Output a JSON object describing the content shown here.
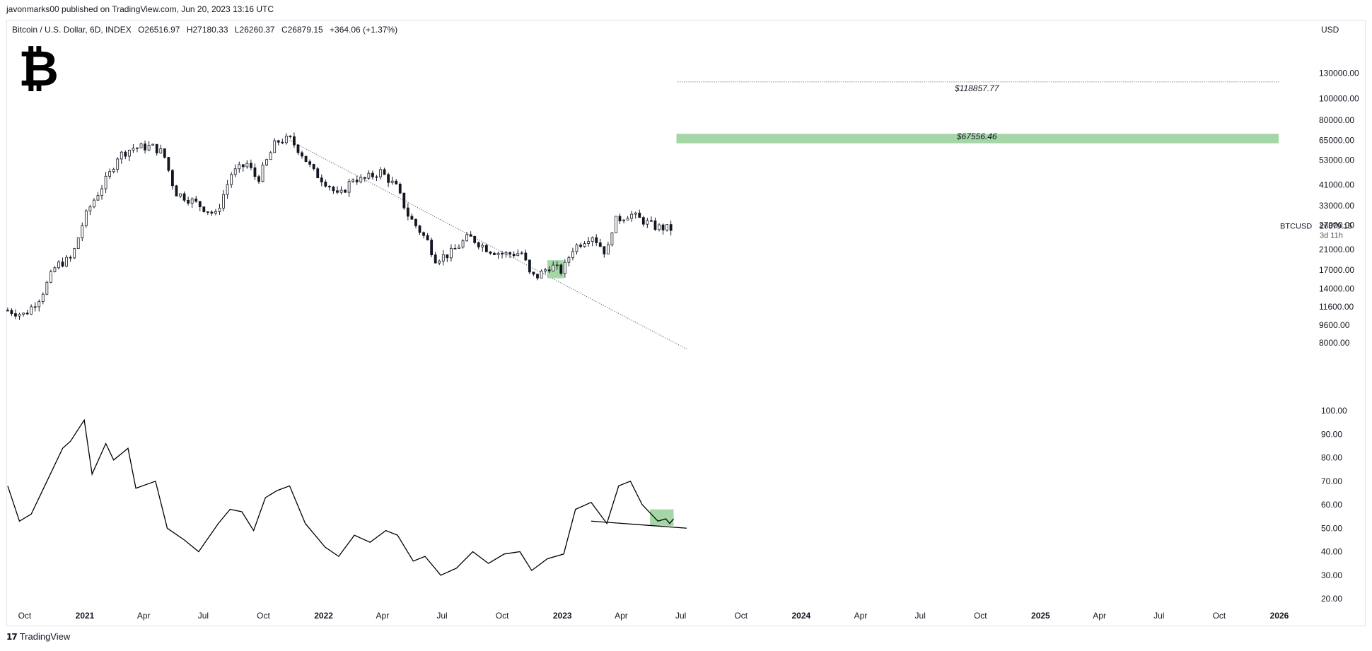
{
  "header": {
    "publisher_line": "javonmarks00 published on TradingView.com, Jun 20, 2023 13:16 UTC"
  },
  "legend": {
    "instrument": "Bitcoin / U.S. Dollar, 6D, INDEX",
    "open": "O26516.97",
    "high": "H27180.33",
    "low": "L26260.37",
    "close": "C26879.15",
    "change": "+364.06 (+1.37%)"
  },
  "logo": {
    "symbol": "₿",
    "icon": "bitcoin-logo-icon"
  },
  "axis": {
    "currency": "USD"
  },
  "price_tag": {
    "symbol": "BTCUSD",
    "price": "26879.15",
    "countdown": "3d 11h"
  },
  "footer": {
    "brand_mark": "17",
    "brand": "TradingView"
  },
  "colors": {
    "candle_up": "#ffffff",
    "candle_down": "#131722",
    "target_band": "#a5d6a7",
    "highlight": "#a5d6a7",
    "line": "#000000",
    "axis_text": "#131722"
  },
  "chart_data": {
    "type": "candlestick",
    "timeframe": "6D",
    "price_scale": "log",
    "price_ticks": [
      "130000.00",
      "100000.00",
      "80000.00",
      "65000.00",
      "53000.00",
      "41000.00",
      "33000.00",
      "27000.00",
      "21000.00",
      "17000.00",
      "14000.00",
      "11600.00",
      "9600.00",
      "8000.00"
    ],
    "indicator_ticks": [
      "100.00",
      "90.00",
      "80.00",
      "70.00",
      "60.00",
      "50.00",
      "40.00",
      "30.00",
      "20.00"
    ],
    "time_ticks": [
      "Oct",
      "2021",
      "Apr",
      "Jul",
      "Oct",
      "2022",
      "Apr",
      "Jul",
      "Oct",
      "2023",
      "Apr",
      "Jul",
      "Oct",
      "2024",
      "Apr",
      "Jul",
      "Oct",
      "2025",
      "Apr",
      "Jul",
      "Oct",
      "2026"
    ],
    "price_series": [
      [
        "2020-09-05",
        11200
      ],
      [
        "2020-10-01",
        10700
      ],
      [
        "2020-10-25",
        12900
      ],
      [
        "2020-11-18",
        17800
      ],
      [
        "2020-12-12",
        19200
      ],
      [
        "2020-12-31",
        28900
      ],
      [
        "2021-01-12",
        34000
      ],
      [
        "2021-02-08",
        46000
      ],
      [
        "2021-02-20",
        55000
      ],
      [
        "2021-03-14",
        60000
      ],
      [
        "2021-04-13",
        61000
      ],
      [
        "2021-05-01",
        57000
      ],
      [
        "2021-05-19",
        38000
      ],
      [
        "2021-06-12",
        35000
      ],
      [
        "2021-07-20",
        30000
      ],
      [
        "2021-08-13",
        46000
      ],
      [
        "2021-09-06",
        51000
      ],
      [
        "2021-09-22",
        43000
      ],
      [
        "2021-10-20",
        64000
      ],
      [
        "2021-11-10",
        66000
      ],
      [
        "2021-11-28",
        57000
      ],
      [
        "2021-12-16",
        47000
      ],
      [
        "2022-01-09",
        41000
      ],
      [
        "2022-01-24",
        36000
      ],
      [
        "2022-02-15",
        44000
      ],
      [
        "2022-03-01",
        43000
      ],
      [
        "2022-03-29",
        47000
      ],
      [
        "2022-04-22",
        40000
      ],
      [
        "2022-05-10",
        30000
      ],
      [
        "2022-06-13",
        22000
      ],
      [
        "2022-06-18",
        19000
      ],
      [
        "2022-07-12",
        20000
      ],
      [
        "2022-08-11",
        24000
      ],
      [
        "2022-09-10",
        21000
      ],
      [
        "2022-10-04",
        20000
      ],
      [
        "2022-11-03",
        20300
      ],
      [
        "2022-11-09",
        16500
      ],
      [
        "2022-11-21",
        15700
      ],
      [
        "2022-12-14",
        17800
      ],
      [
        "2023-01-01",
        16700
      ],
      [
        "2023-01-16",
        21100
      ],
      [
        "2023-02-15",
        24500
      ],
      [
        "2023-03-10",
        20000
      ],
      [
        "2023-03-20",
        28000
      ],
      [
        "2023-04-14",
        30400
      ],
      [
        "2023-05-02",
        28500
      ],
      [
        "2023-05-24",
        26500
      ],
      [
        "2023-06-17",
        26000
      ],
      [
        "2023-06-20",
        26879
      ]
    ],
    "indicator_series": [
      [
        "2020-09-05",
        68
      ],
      [
        "2020-09-23",
        53
      ],
      [
        "2020-10-11",
        56
      ],
      [
        "2020-11-04",
        70
      ],
      [
        "2020-11-28",
        84
      ],
      [
        "2020-12-10",
        87
      ],
      [
        "2020-12-31",
        96
      ],
      [
        "2021-01-12",
        73
      ],
      [
        "2021-02-02",
        86
      ],
      [
        "2021-02-14",
        79
      ],
      [
        "2021-03-08",
        84
      ],
      [
        "2021-03-20",
        67
      ],
      [
        "2021-04-19",
        70
      ],
      [
        "2021-05-07",
        50
      ],
      [
        "2021-06-02",
        45
      ],
      [
        "2021-06-24",
        40
      ],
      [
        "2021-07-24",
        52
      ],
      [
        "2021-08-11",
        58
      ],
      [
        "2021-08-29",
        57
      ],
      [
        "2021-09-16",
        49
      ],
      [
        "2021-10-04",
        63
      ],
      [
        "2021-10-22",
        66
      ],
      [
        "2021-11-10",
        68
      ],
      [
        "2021-12-04",
        52
      ],
      [
        "2022-01-03",
        42
      ],
      [
        "2022-01-24",
        38
      ],
      [
        "2022-02-17",
        47
      ],
      [
        "2022-03-13",
        44
      ],
      [
        "2022-04-06",
        49
      ],
      [
        "2022-04-24",
        47
      ],
      [
        "2022-05-18",
        36
      ],
      [
        "2022-06-05",
        38
      ],
      [
        "2022-06-29",
        30
      ],
      [
        "2022-07-23",
        33
      ],
      [
        "2022-08-17",
        40
      ],
      [
        "2022-09-10",
        35
      ],
      [
        "2022-10-04",
        39
      ],
      [
        "2022-10-28",
        40
      ],
      [
        "2022-11-15",
        32
      ],
      [
        "2022-12-09",
        37
      ],
      [
        "2023-01-03",
        39
      ],
      [
        "2023-01-21",
        58
      ],
      [
        "2023-02-14",
        61
      ],
      [
        "2023-03-10",
        52
      ],
      [
        "2023-03-28",
        68
      ],
      [
        "2023-04-15",
        70
      ],
      [
        "2023-05-03",
        60
      ],
      [
        "2023-05-27",
        53
      ],
      [
        "2023-06-08",
        54
      ],
      [
        "2023-06-14",
        52
      ],
      [
        "2023-06-20",
        54
      ]
    ],
    "annotations": [
      {
        "type": "horizontal_line",
        "style": "dotted",
        "value": 118857.77,
        "label": "$118857.77",
        "x_range": [
          "2023-06-20",
          "2026-01-01"
        ]
      },
      {
        "type": "band",
        "value": 67556.46,
        "low": 63000,
        "high": 69500,
        "label": "$67556.46",
        "x_range": [
          "2023-06-20",
          "2026-01-01"
        ]
      },
      {
        "type": "trendline",
        "style": "dotted",
        "from": [
          "2021-11-10",
          65000
        ],
        "to": [
          "2023-07-10",
          7500
        ]
      },
      {
        "type": "highlight",
        "from": [
          "2022-12-09",
          15600
        ],
        "to": [
          "2023-01-03",
          18800
        ]
      },
      {
        "type": "indicator_trendline",
        "from": [
          "2023-02-14",
          53
        ],
        "to": [
          "2023-07-10",
          50
        ]
      },
      {
        "type": "indicator_highlight",
        "from": [
          "2023-05-15",
          51
        ],
        "to": [
          "2023-06-20",
          58
        ]
      }
    ]
  }
}
